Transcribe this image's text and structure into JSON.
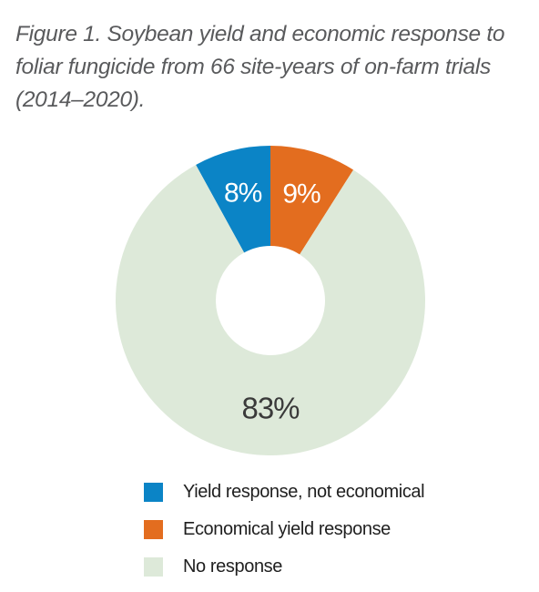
{
  "caption": "Figure 1. Soybean yield and economic response to foliar fungicide from 66 site-years of on-farm trials (2014–2020).",
  "chart_data": {
    "type": "pie",
    "donut": true,
    "title": "Figure 1. Soybean yield and economic response to foliar fungicide from 66 site-years of on-farm trials (2014–2020).",
    "legend_position": "bottom",
    "slices": [
      {
        "label": "Yield response, not economical",
        "value": 8,
        "value_label": "8%",
        "color": "#0b84c6",
        "label_color": "#ffffff"
      },
      {
        "label": "Economical yield response",
        "value": 9,
        "value_label": "9%",
        "color": "#e36d1f",
        "label_color": "#ffffff"
      },
      {
        "label": "No response",
        "value": 83,
        "value_label": "83%",
        "color": "#dde9d9",
        "label_color": "#3a3a3a"
      }
    ]
  }
}
